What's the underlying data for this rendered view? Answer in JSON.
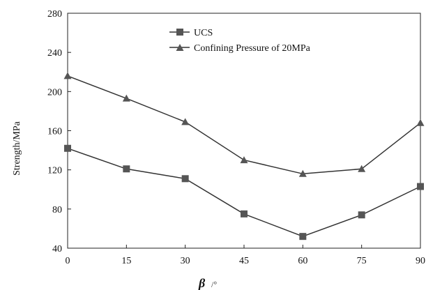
{
  "chart_data": {
    "type": "line",
    "x": [
      0,
      15,
      30,
      45,
      60,
      75,
      90
    ],
    "x_tick_labels": [
      "0",
      "15",
      "30",
      "45",
      "60",
      "75",
      "90"
    ],
    "y_tick_labels": [
      "40",
      "80",
      "120",
      "160",
      "200",
      "240",
      "280"
    ],
    "xlim": [
      0,
      90
    ],
    "ylim": [
      40,
      280
    ],
    "xlabel": {
      "symbol": "β",
      "unit": "/°"
    },
    "ylabel": "Strength/MPa",
    "grid": false,
    "legend_placement": "top-center",
    "series": [
      {
        "name": "UCS",
        "marker": "square",
        "values": [
          142,
          121,
          111,
          75,
          52,
          74,
          103
        ]
      },
      {
        "name": "Confining Pressure of 20MPa",
        "marker": "triangle",
        "values": [
          216,
          193,
          169,
          130,
          116,
          121,
          168
        ]
      }
    ],
    "colors": {
      "line": "#333333",
      "marker": "#555555"
    }
  }
}
